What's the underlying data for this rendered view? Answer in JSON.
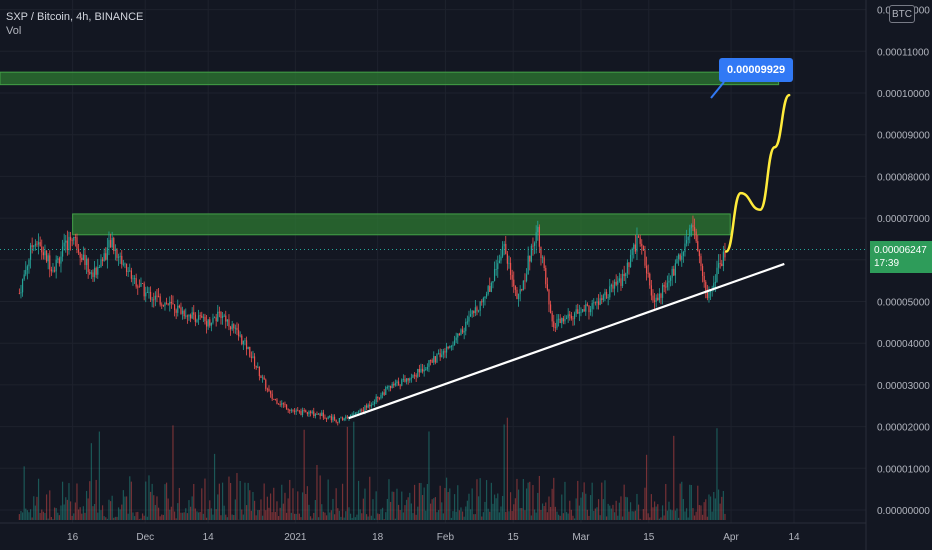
{
  "header": {
    "symbol_line": "SXP / Bitcoin, 4h, BINANCE",
    "volume_label": "Vol"
  },
  "currency_badge": "BTC",
  "last_price": {
    "value": "0.00006247",
    "countdown": "17:39"
  },
  "annotation": {
    "target_label": "0.00009929"
  },
  "colors": {
    "background": "#131722",
    "up": "#26a69a",
    "down": "#ef5350",
    "zone": "#2e7d32",
    "trendline": "#ffffff",
    "projection": "#ffeb3b",
    "callout": "#3179f5",
    "axis_text": "#b2b5be"
  },
  "chart_data": {
    "type": "candlestick",
    "title": "SXP / Bitcoin, 4h, BINANCE",
    "y_ticks": [
      "0.00012000",
      "0.00011000",
      "0.00010000",
      "0.00009000",
      "0.00008000",
      "0.00007000",
      "0.00006000",
      "0.00005000",
      "0.00004000",
      "0.00003000",
      "0.00002000",
      "0.00001000",
      "0.00000000"
    ],
    "ylim": [
      0.0,
      0.000121
    ],
    "x_ticks": [
      "16",
      "Dec",
      "14",
      "2021",
      "18",
      "Feb",
      "15",
      "Mar",
      "15",
      "Apr",
      "14"
    ],
    "price_path": [
      {
        "date": "2020-11-05",
        "price": 5.2e-05
      },
      {
        "date": "2020-11-08",
        "price": 6.5e-05
      },
      {
        "date": "2020-11-12",
        "price": 5.8e-05
      },
      {
        "date": "2020-11-16",
        "price": 6.6e-05
      },
      {
        "date": "2020-11-20",
        "price": 5.6e-05
      },
      {
        "date": "2020-11-24",
        "price": 6.4e-05
      },
      {
        "date": "2020-11-27",
        "price": 5.8e-05
      },
      {
        "date": "2020-12-01",
        "price": 5.2e-05
      },
      {
        "date": "2020-12-08",
        "price": 4.8e-05
      },
      {
        "date": "2020-12-14",
        "price": 4.5e-05
      },
      {
        "date": "2020-12-17",
        "price": 4.7e-05
      },
      {
        "date": "2020-12-22",
        "price": 3.9e-05
      },
      {
        "date": "2020-12-27",
        "price": 2.7e-05
      },
      {
        "date": "2021-01-01",
        "price": 2.35e-05
      },
      {
        "date": "2021-01-06",
        "price": 2.3e-05
      },
      {
        "date": "2021-01-10",
        "price": 2.15e-05
      },
      {
        "date": "2021-01-15",
        "price": 2.4e-05
      },
      {
        "date": "2021-01-20",
        "price": 2.9e-05
      },
      {
        "date": "2021-01-25",
        "price": 3.2e-05
      },
      {
        "date": "2021-02-01",
        "price": 3.8e-05
      },
      {
        "date": "2021-02-05",
        "price": 4.4e-05
      },
      {
        "date": "2021-02-10",
        "price": 5.3e-05
      },
      {
        "date": "2021-02-13",
        "price": 6.4e-05
      },
      {
        "date": "2021-02-16",
        "price": 5e-05
      },
      {
        "date": "2021-02-20",
        "price": 6.8e-05
      },
      {
        "date": "2021-02-23",
        "price": 4.4e-05
      },
      {
        "date": "2021-02-28",
        "price": 4.7e-05
      },
      {
        "date": "2021-03-05",
        "price": 5e-05
      },
      {
        "date": "2021-03-10",
        "price": 5.6e-05
      },
      {
        "date": "2021-03-13",
        "price": 6.6e-05
      },
      {
        "date": "2021-03-16",
        "price": 4.9e-05
      },
      {
        "date": "2021-03-20",
        "price": 5.7e-05
      },
      {
        "date": "2021-03-24",
        "price": 6.9e-05
      },
      {
        "date": "2021-03-27",
        "price": 5.1e-05
      },
      {
        "date": "2021-03-31",
        "price": 6.25e-05
      }
    ],
    "supply_zones": [
      {
        "from": "2020-11-16",
        "to": "2021-03-31",
        "low": 6.6e-05,
        "high": 7.1e-05
      },
      {
        "from": "2020-11-01",
        "to": "2021-04-10",
        "low": 0.000102,
        "high": 0.000105
      }
    ],
    "trendline": [
      {
        "date": "2021-01-12",
        "price": 2.2e-05
      },
      {
        "date": "2021-04-12",
        "price": 5.9e-05
      }
    ],
    "projection_path": [
      {
        "date": "2021-03-31",
        "price": 6.2e-05
      },
      {
        "date": "2021-04-03",
        "price": 7.6e-05
      },
      {
        "date": "2021-04-07",
        "price": 7.2e-05
      },
      {
        "date": "2021-04-10",
        "price": 8.7e-05
      },
      {
        "date": "2021-04-13",
        "price": 9.95e-05
      }
    ],
    "target_price": 9.929e-05,
    "last_price": 6.247e-05,
    "volume_series": "Vol"
  }
}
